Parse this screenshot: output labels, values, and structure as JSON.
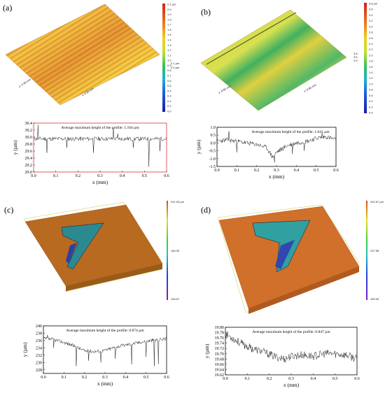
{
  "panels": [
    {
      "label": "(a)",
      "surface": {
        "axis_labels": [
          "y: 0.86 mm",
          "x: 0.86 mm"
        ],
        "colorbar_ticks": [
          "2.1 µm",
          "2.0",
          "1.9",
          "1.8",
          "1.7",
          "1.6",
          "1.5",
          "1.4",
          "1.3",
          "1.2",
          "1.1",
          "1.0",
          "0.9",
          "0.8",
          "0.7",
          "0.6",
          "0.5",
          "0.4",
          "0.3",
          "0.2",
          "0.1",
          "0.0"
        ],
        "colorbar_side": [
          "2.1 µm",
          "0.0 µm"
        ]
      },
      "chart_data": {
        "type": "line",
        "annotation": "Average maximum height of the profile: 1.104 µm",
        "xlabel": "x (mm)",
        "ylabel": "y (µm)",
        "xlim": [
          0,
          0.6
        ],
        "ylim": [
          29.0,
          30.4
        ],
        "xticks": [
          "0.0",
          "0.1",
          "0.2",
          "0.3",
          "0.4",
          "0.5",
          "0.6"
        ],
        "yticks": [
          "29.0",
          "29.2",
          "29.4",
          "29.6",
          "29.8",
          "30.0",
          "30.2",
          "30.4"
        ],
        "baseline": 29.95,
        "noise": 0.06,
        "spikes": [
          [
            0.02,
            30.35
          ],
          [
            0.06,
            29.55
          ],
          [
            0.15,
            29.7
          ],
          [
            0.27,
            29.55
          ],
          [
            0.36,
            30.25
          ],
          [
            0.38,
            30.1
          ],
          [
            0.45,
            29.7
          ],
          [
            0.52,
            29.15
          ],
          [
            0.57,
            29.6
          ]
        ]
      }
    },
    {
      "label": "(b)",
      "surface": {
        "axis_labels": [
          "y: 0.86 mm",
          "x: 0.86 mm"
        ],
        "colorbar_ticks": [
          "3.8 µm",
          "3.6",
          "3.4",
          "3.2",
          "3.0",
          "2.8",
          "2.6",
          "2.4",
          "2.2",
          "2.0",
          "1.8",
          "1.6",
          "1.4",
          "1.2",
          "1.0",
          "0.8",
          "0.6",
          "0.4",
          "0.2",
          "0.0"
        ],
        "colorbar_side": [
          "3.8",
          "3.6",
          "3.5"
        ]
      },
      "chart_data": {
        "type": "line",
        "annotation": "Average maximum height of the profile: 1.041 µm",
        "xlabel": "x (mm)",
        "ylabel": "y (µm)",
        "xlim": [
          0,
          0.6
        ],
        "ylim": [
          -1.5,
          1.0
        ],
        "xticks": [
          "0.0",
          "0.1",
          "0.2",
          "0.3",
          "0.4",
          "0.5",
          "0.6"
        ],
        "yticks": [
          "-1.5",
          "-1.0",
          "-0.5",
          "0.0",
          "0.5",
          "1.0"
        ],
        "trend": [
          [
            0,
            0.1
          ],
          [
            0.05,
            0.2
          ],
          [
            0.1,
            0.1
          ],
          [
            0.15,
            0.0
          ],
          [
            0.2,
            -0.1
          ],
          [
            0.25,
            -0.3
          ],
          [
            0.28,
            -0.9
          ],
          [
            0.3,
            -0.6
          ],
          [
            0.35,
            -0.2
          ],
          [
            0.4,
            0.0
          ],
          [
            0.45,
            0.1
          ],
          [
            0.5,
            0.3
          ],
          [
            0.55,
            0.4
          ],
          [
            0.6,
            0.2
          ]
        ],
        "noise": 0.15,
        "spikes": [
          [
            0.06,
            0.75
          ],
          [
            0.1,
            -0.6
          ],
          [
            0.29,
            -1.25
          ],
          [
            0.38,
            -0.7
          ],
          [
            0.44,
            -0.5
          ],
          [
            0.53,
            0.65
          ]
        ]
      }
    },
    {
      "label": "(c)",
      "surface": {
        "axis_labels": [],
        "colorbar_ticks": [
          "241.93 µm",
          "184.05",
          "126.67"
        ],
        "colorbar_side": []
      },
      "chart_data": {
        "type": "line",
        "annotation": "Average maximum height of the profile: 0.874 µm",
        "xlabel": "x (mm)",
        "ylabel": "y (µm)",
        "xlim": [
          0,
          0.6
        ],
        "ylim": [
          227,
          240
        ],
        "xticks": [
          "0.0",
          "0.1",
          "0.2",
          "0.3",
          "0.4",
          "0.5",
          "0.6"
        ],
        "yticks": [
          "228",
          "230",
          "232",
          "234",
          "236",
          "238",
          "240"
        ],
        "trend": [
          [
            0,
            236.5
          ],
          [
            0.05,
            236.3
          ],
          [
            0.1,
            235.5
          ],
          [
            0.15,
            234.5
          ],
          [
            0.2,
            233.2
          ],
          [
            0.25,
            233.0
          ],
          [
            0.3,
            233.3
          ],
          [
            0.35,
            234.2
          ],
          [
            0.4,
            234.8
          ],
          [
            0.45,
            235.3
          ],
          [
            0.5,
            235.8
          ],
          [
            0.55,
            236.2
          ],
          [
            0.6,
            236.5
          ]
        ],
        "noise": 0.5,
        "spikes": [
          [
            0.02,
            237.5
          ],
          [
            0.05,
            234.0
          ],
          [
            0.16,
            229.0
          ],
          [
            0.22,
            230.5
          ],
          [
            0.28,
            230.0
          ],
          [
            0.35,
            231.0
          ],
          [
            0.43,
            229.5
          ],
          [
            0.5,
            231.5
          ],
          [
            0.54,
            229.0
          ],
          [
            0.56,
            229.5
          ]
        ]
      }
    },
    {
      "label": "(d)",
      "surface": {
        "axis_labels": [],
        "colorbar_ticks": [
          "342.67 µm",
          "237.58",
          "169.09"
        ],
        "colorbar_side": []
      },
      "chart_data": {
        "type": "line",
        "annotation": "Average maximum height of the profile: 0.847 µm",
        "xlabel": "x (mm)",
        "ylabel": "y (µm)",
        "xlim": [
          0,
          0.6
        ],
        "ylim": [
          19.62,
          19.8
        ],
        "xticks": [
          "0.0",
          "0.1",
          "0.2",
          "0.3",
          "0.4",
          "0.5",
          "0.6"
        ],
        "yticks": [
          "19.62",
          "19.64",
          "19.66",
          "19.68",
          "19.70",
          "19.72",
          "19.74",
          "19.76",
          "19.78",
          "19.80"
        ],
        "trend": [
          [
            0,
            19.775
          ],
          [
            0.03,
            19.76
          ],
          [
            0.08,
            19.735
          ],
          [
            0.12,
            19.72
          ],
          [
            0.18,
            19.705
          ],
          [
            0.22,
            19.69
          ],
          [
            0.27,
            19.68
          ],
          [
            0.3,
            19.69
          ],
          [
            0.35,
            19.695
          ],
          [
            0.4,
            19.69
          ],
          [
            0.45,
            19.7
          ],
          [
            0.5,
            19.7
          ],
          [
            0.55,
            19.695
          ],
          [
            0.6,
            19.68
          ]
        ],
        "noise": 0.015,
        "spikes": []
      }
    }
  ],
  "colors": {
    "line": "#1a1a1a",
    "frame_a": "#e0303a",
    "frame": "#000000"
  }
}
